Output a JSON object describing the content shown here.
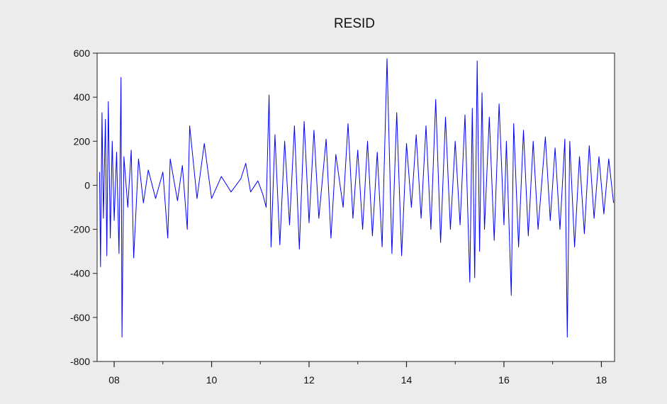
{
  "chart_data": {
    "type": "line",
    "title": "RESID",
    "xlabel": "",
    "ylabel": "",
    "x_ticks": [
      {
        "value": 2008,
        "label": "08"
      },
      {
        "value": 2010,
        "label": "10"
      },
      {
        "value": 2012,
        "label": "12"
      },
      {
        "value": 2014,
        "label": "14"
      },
      {
        "value": 2016,
        "label": "16"
      },
      {
        "value": 2018,
        "label": "18"
      }
    ],
    "y_ticks": [
      600,
      400,
      200,
      0,
      -200,
      -400,
      -600,
      -800
    ],
    "xlim": [
      2007.65,
      2018.27
    ],
    "ylim": [
      -800,
      600
    ],
    "line_color": "#0000ff",
    "grid": false,
    "series": [
      {
        "values": [
          [
            2007.7,
            60
          ],
          [
            2007.72,
            -370
          ],
          [
            2007.75,
            330
          ],
          [
            2007.78,
            -150
          ],
          [
            2007.82,
            300
          ],
          [
            2007.85,
            -320
          ],
          [
            2007.88,
            380
          ],
          [
            2007.92,
            -240
          ],
          [
            2007.96,
            200
          ],
          [
            2008.0,
            -160
          ],
          [
            2008.05,
            150
          ],
          [
            2008.1,
            -310
          ],
          [
            2008.14,
            490
          ],
          [
            2008.16,
            -690
          ],
          [
            2008.2,
            130
          ],
          [
            2008.28,
            -100
          ],
          [
            2008.35,
            160
          ],
          [
            2008.4,
            -330
          ],
          [
            2008.5,
            120
          ],
          [
            2008.6,
            -80
          ],
          [
            2008.7,
            70
          ],
          [
            2008.85,
            -60
          ],
          [
            2009.0,
            60
          ],
          [
            2009.1,
            -240
          ],
          [
            2009.15,
            120
          ],
          [
            2009.3,
            -70
          ],
          [
            2009.4,
            90
          ],
          [
            2009.5,
            -200
          ],
          [
            2009.55,
            270
          ],
          [
            2009.7,
            -60
          ],
          [
            2009.85,
            190
          ],
          [
            2010.0,
            -60
          ],
          [
            2010.2,
            40
          ],
          [
            2010.4,
            -30
          ],
          [
            2010.6,
            30
          ],
          [
            2010.7,
            100
          ],
          [
            2010.8,
            -30
          ],
          [
            2010.95,
            20
          ],
          [
            2011.05,
            -40
          ],
          [
            2011.12,
            -100
          ],
          [
            2011.18,
            410
          ],
          [
            2011.22,
            -280
          ],
          [
            2011.3,
            230
          ],
          [
            2011.4,
            -270
          ],
          [
            2011.5,
            200
          ],
          [
            2011.6,
            -180
          ],
          [
            2011.7,
            270
          ],
          [
            2011.8,
            -290
          ],
          [
            2011.9,
            290
          ],
          [
            2012.0,
            -170
          ],
          [
            2012.1,
            250
          ],
          [
            2012.2,
            -150
          ],
          [
            2012.35,
            210
          ],
          [
            2012.45,
            -240
          ],
          [
            2012.55,
            140
          ],
          [
            2012.7,
            -100
          ],
          [
            2012.8,
            280
          ],
          [
            2012.9,
            -150
          ],
          [
            2013.0,
            160
          ],
          [
            2013.1,
            -200
          ],
          [
            2013.2,
            200
          ],
          [
            2013.3,
            -230
          ],
          [
            2013.4,
            150
          ],
          [
            2013.5,
            -280
          ],
          [
            2013.6,
            575
          ],
          [
            2013.7,
            -310
          ],
          [
            2013.8,
            330
          ],
          [
            2013.9,
            -320
          ],
          [
            2014.0,
            190
          ],
          [
            2014.1,
            -100
          ],
          [
            2014.2,
            230
          ],
          [
            2014.3,
            -150
          ],
          [
            2014.4,
            270
          ],
          [
            2014.5,
            -200
          ],
          [
            2014.6,
            390
          ],
          [
            2014.7,
            -260
          ],
          [
            2014.8,
            310
          ],
          [
            2014.9,
            -200
          ],
          [
            2015.0,
            200
          ],
          [
            2015.1,
            -180
          ],
          [
            2015.2,
            320
          ],
          [
            2015.3,
            -440
          ],
          [
            2015.35,
            350
          ],
          [
            2015.4,
            -420
          ],
          [
            2015.45,
            565
          ],
          [
            2015.5,
            -300
          ],
          [
            2015.55,
            420
          ],
          [
            2015.6,
            -200
          ],
          [
            2015.7,
            310
          ],
          [
            2015.8,
            -250
          ],
          [
            2015.9,
            370
          ],
          [
            2016.0,
            -180
          ],
          [
            2016.05,
            200
          ],
          [
            2016.15,
            -500
          ],
          [
            2016.2,
            280
          ],
          [
            2016.3,
            -280
          ],
          [
            2016.4,
            250
          ],
          [
            2016.5,
            -230
          ],
          [
            2016.6,
            200
          ],
          [
            2016.7,
            -200
          ],
          [
            2016.85,
            220
          ],
          [
            2016.95,
            -160
          ],
          [
            2017.05,
            170
          ],
          [
            2017.15,
            -200
          ],
          [
            2017.25,
            210
          ],
          [
            2017.3,
            -690
          ],
          [
            2017.35,
            200
          ],
          [
            2017.45,
            -280
          ],
          [
            2017.55,
            130
          ],
          [
            2017.65,
            -220
          ],
          [
            2017.75,
            180
          ],
          [
            2017.85,
            -150
          ],
          [
            2017.95,
            130
          ],
          [
            2018.05,
            -130
          ],
          [
            2018.15,
            120
          ],
          [
            2018.25,
            -80
          ]
        ]
      }
    ]
  }
}
